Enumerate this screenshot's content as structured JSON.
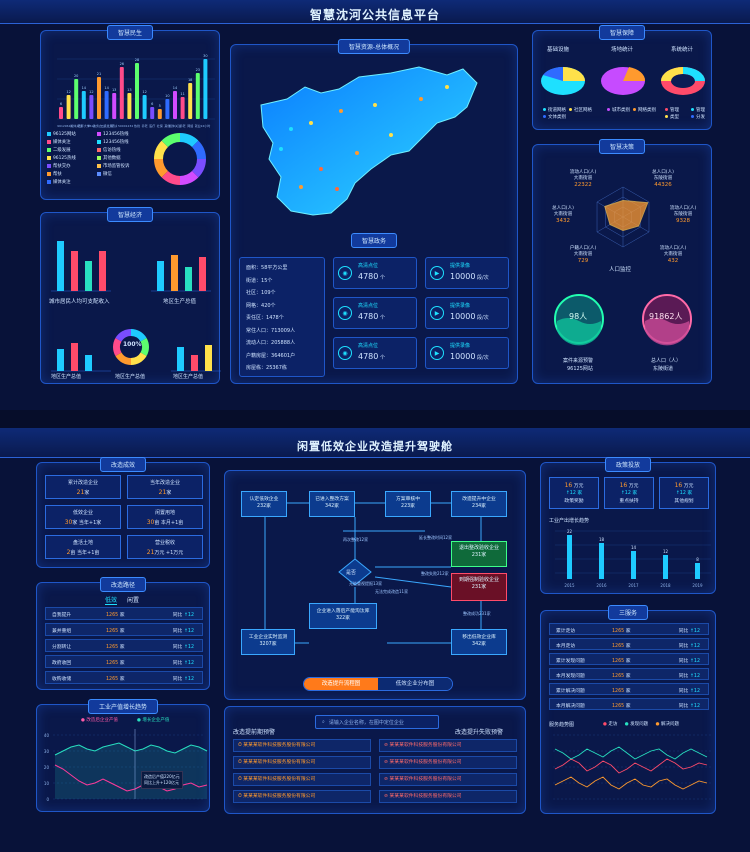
{
  "top": {
    "title": "智慧沈河公共信息平台",
    "livelihood": {
      "title": "智慧民生",
      "bar_labels": [
        "96125网站",
        "96125热线",
        "媒体关注",
        "老年大学",
        "96125咨询",
        "政务办公",
        "二级发展",
        "帮扶",
        "5000户",
        "123456网站",
        "热线",
        "养老",
        "医疗",
        "社保",
        "其他",
        "媒体关注",
        "养老",
        "网络",
        "就业",
        "24小时"
      ],
      "bar_values": [
        6,
        12,
        20,
        14,
        12,
        21,
        14,
        13,
        26,
        13,
        28,
        12,
        6,
        5,
        10,
        14,
        11,
        18,
        23,
        30
      ],
      "bar_value_labels": [
        "6",
        "12",
        "20",
        "14",
        "12",
        "21",
        "14",
        "13",
        "26",
        "13",
        "28",
        "12",
        "6",
        "5",
        "10",
        "14",
        "11",
        "18",
        "23",
        "30"
      ],
      "legend": [
        "96125网站",
        "媒体关注",
        "二级发展",
        "96125热线",
        "帮扶交办",
        "帮扶",
        "媒体关注",
        "123456热线",
        "123456热线",
        "信访热线",
        "其他数据",
        "市场监管投诉",
        "微信"
      ],
      "ring_colors": [
        "#1ecbff",
        "#2f6bff",
        "#7a4dff",
        "#d24bff",
        "#ff4b8a",
        "#ff9a2e",
        "#ffe14a",
        "#5cff6e"
      ]
    },
    "economy": {
      "title": "智慧经济",
      "chart1_label": "城市居民人均可支配收入",
      "chart2_label": "地区生产总值",
      "chart3_label": "地区生产总值",
      "chart4_label": "地区生产总值",
      "chart5_label": "地区生产总值",
      "ring_value": "100%",
      "bar_x_labels": [
        "第一产业",
        "第二产业",
        "第三产业",
        "第四产业"
      ]
    },
    "resources": {
      "title": "智慧资源-总体概况",
      "gov_title": "智慧政务",
      "stats": [
        {
          "label": "面积：",
          "value": "58平方公里"
        },
        {
          "label": "街道：",
          "value": "15个"
        },
        {
          "label": "社区：",
          "value": "109个"
        },
        {
          "label": "网格：",
          "value": "420个"
        },
        {
          "label": "责任区：",
          "value": "1478个"
        },
        {
          "label": "常住人口：",
          "value": "713009人"
        },
        {
          "label": "流动人口：",
          "value": "205888人"
        },
        {
          "label": "户籍房屋：",
          "value": "364601户"
        },
        {
          "label": "房屋栋：",
          "value": "25367栋"
        }
      ],
      "gov_items": [
        {
          "label": "高清点位",
          "value": "4780",
          "unit": "个"
        },
        {
          "label": "提供录像",
          "value": "10000",
          "unit": "段/次"
        },
        {
          "label": "高清点位",
          "value": "4780",
          "unit": "个"
        },
        {
          "label": "提供录像",
          "value": "10000",
          "unit": "段/次"
        },
        {
          "label": "高清点位",
          "value": "4780",
          "unit": "个"
        },
        {
          "label": "提供录像",
          "value": "10000",
          "unit": "段/次"
        }
      ]
    },
    "security": {
      "title": "智慧保障",
      "pie_titles": [
        "基础设施",
        "场地统计",
        "系统统计"
      ],
      "legend1": [
        "街道网格",
        "社区网格",
        "文体类别"
      ],
      "legend2": [
        "城市类别",
        "网络类别"
      ],
      "legend3": [
        "管理",
        "管理",
        "类型",
        "分发"
      ]
    },
    "decision": {
      "title": "智慧决策",
      "radar_labels": [
        {
          "text": "流动人口(人)\n大南街道",
          "value": "22322"
        },
        {
          "text": "总人口(人)\n东陵街道",
          "value": "44326"
        },
        {
          "text": "流动人口(人)\n东陵街道",
          "value": "9328"
        },
        {
          "text": "流动人口(人)\n大南街道",
          "value": "432"
        },
        {
          "text": "户籍人口(人)\n大南街道",
          "value": "729"
        },
        {
          "text": "总人口(人)\n大南街道",
          "value": "3432"
        }
      ],
      "radar_center": "人口监控",
      "bubble1_value": "98人",
      "bubble1_label": "案件来源预警",
      "bubble1_sub": "96125网站",
      "bubble2_value": "91862人",
      "bubble2_label": "总人口（人）",
      "bubble2_sub": "东陵街道"
    }
  },
  "bottom": {
    "title": "闲置低效企业改造提升驾驶舱",
    "effect": {
      "title": "改造成效",
      "items": [
        {
          "label": "累计改造企业",
          "value": "21",
          "unit": "家"
        },
        {
          "label": "当年改造企业",
          "value": "21",
          "unit": "家"
        },
        {
          "label": "低效企业",
          "value": "30",
          "unit": "家",
          "extra": "当年+1家"
        },
        {
          "label": "闲置用地",
          "value": "30",
          "unit": "亩",
          "extra": "本月+1亩"
        },
        {
          "label": "盘活土地",
          "value": "2",
          "unit": "亩",
          "extra": "当年+1亩"
        },
        {
          "label": "营业税收",
          "value": "21",
          "unit": "万元",
          "extra": "+1万元"
        }
      ]
    },
    "path": {
      "title": "改造路径",
      "tabs": [
        "低效",
        "闲置"
      ],
      "rows": [
        {
          "name": "自我提升",
          "value": "1265",
          "unit": "家",
          "cmp": "同比",
          "change": "12"
        },
        {
          "name": "兼并重组",
          "value": "1265",
          "unit": "家",
          "cmp": "同比",
          "change": "12"
        },
        {
          "name": "分割转让",
          "value": "1265",
          "unit": "家",
          "cmp": "同比",
          "change": "12"
        },
        {
          "name": "政府收回",
          "value": "1265",
          "unit": "家",
          "cmp": "同比",
          "change": "12"
        },
        {
          "name": "收购收储",
          "value": "1265",
          "unit": "家",
          "cmp": "同比",
          "change": "12"
        }
      ]
    },
    "trend": {
      "title": "工业产值增长趋势",
      "legend": [
        "改造后企业产值",
        "增长企业产值"
      ],
      "tooltip": [
        "改造后产值220亿元",
        "同比上升+120亿元"
      ],
      "y_ticks": [
        "40",
        "30",
        "20",
        "10",
        "0"
      ]
    },
    "flow": {
      "nodes": [
        {
          "label": "认定低效企业",
          "count": "232家"
        },
        {
          "label": "已进入整改方案",
          "count": "342家"
        },
        {
          "label": "方案审核中",
          "count": "223家"
        },
        {
          "label": "改造提升中企业",
          "count": "234家"
        },
        {
          "label": "企业进入落后产能淘汰库",
          "count": "322家"
        },
        {
          "label": "工业企业实时监测",
          "count": "3207家"
        },
        {
          "label": "移出低效企业库",
          "count": "342家"
        }
      ],
      "decision": "是否",
      "green_box": {
        "label": "退出整改验收企业",
        "count": "231家"
      },
      "red_box": {
        "label": "到期强制验收企业",
        "count": "231家"
      },
      "annotations": [
        "再次整改12家",
        "延长整改时间12家",
        "整改失败212家",
        "无能重视提报13家",
        "整改成功231家",
        "无法完成改造11家"
      ],
      "tabs": [
        "改造提升流程图",
        "低效企业分布图"
      ],
      "search_placeholder": "请输入企业名称，在图中定位企业",
      "list1_title": "改造提前期预警",
      "list2_title": "改造提升失败预警",
      "companies": [
        "某某某软件科技服务股份有限公司",
        "某某某软件科技服务股份有限公司",
        "某某某软件科技服务股份有限公司",
        "某某某软件科技服务股份有限公司"
      ]
    },
    "policy": {
      "title": "政策投放",
      "items": [
        {
          "value": "16",
          "unit": "万元",
          "change": "12",
          "label": "政策奖励"
        },
        {
          "value": "16",
          "unit": "万元",
          "change": "12",
          "label": "重点扶持"
        },
        {
          "value": "16",
          "unit": "万元",
          "change": "12",
          "label": "其他规划"
        }
      ],
      "chart_title": "工业产出增长趋势",
      "chart_x": [
        "2015",
        "2016",
        "2017",
        "2018",
        "2019"
      ],
      "chart_vals": [
        22,
        18,
        14,
        12,
        8
      ]
    },
    "service": {
      "title": "三服务",
      "rows": [
        {
          "name": "累计走访",
          "value": "1265",
          "unit": "家",
          "cmp": "同比",
          "change": "12"
        },
        {
          "name": "本月走访",
          "value": "1265",
          "unit": "家",
          "cmp": "同比",
          "change": "12"
        },
        {
          "name": "累计发现问题",
          "value": "1265",
          "unit": "家",
          "cmp": "同比",
          "change": "12"
        },
        {
          "name": "本月发现问题",
          "value": "1265",
          "unit": "家",
          "cmp": "同比",
          "change": "12"
        },
        {
          "name": "累计解决问题",
          "value": "1265",
          "unit": "家",
          "cmp": "同比",
          "change": "12"
        },
        {
          "name": "本月解决问题",
          "value": "1265",
          "unit": "家",
          "cmp": "同比",
          "change": "12"
        }
      ],
      "trend_title": "服务趋势图",
      "trend_legend": [
        "走访",
        "发现问题",
        "解决问题"
      ]
    }
  }
}
